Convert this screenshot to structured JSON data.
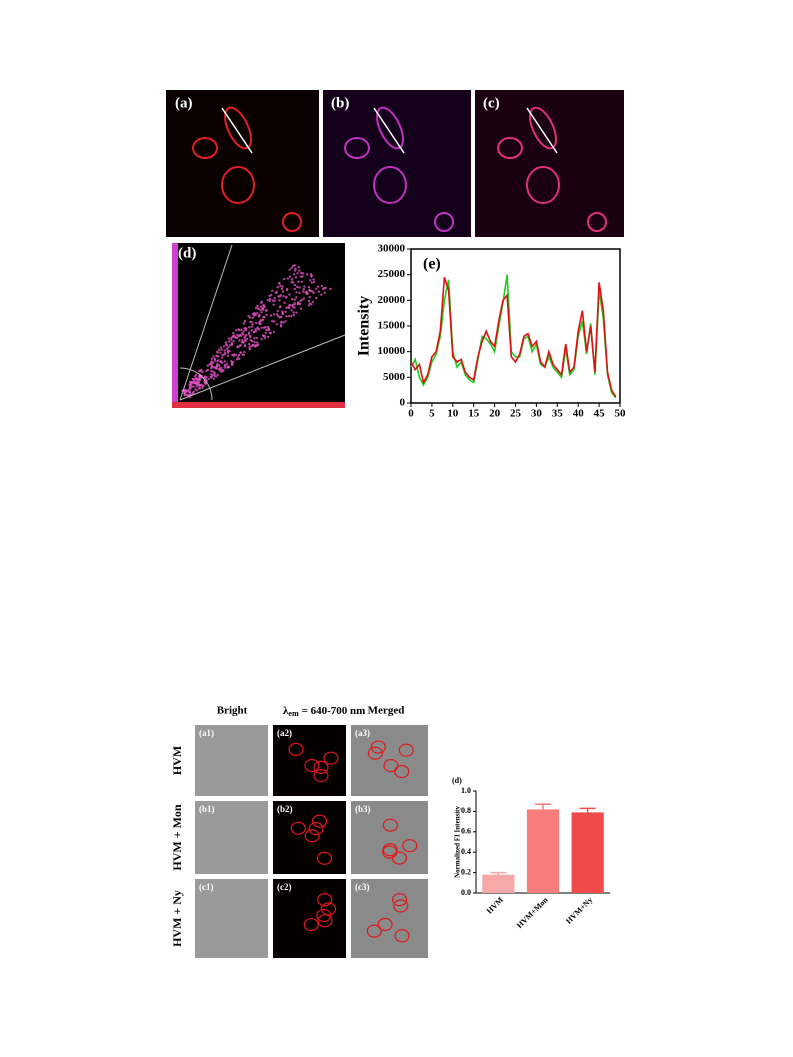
{
  "figure1": {
    "panel_labels": [
      "(a)",
      "(b)",
      "(c)",
      "(d)"
    ]
  },
  "chart_data": [
    {
      "type": "line",
      "annotation": "(e)",
      "y_label": "Intensity",
      "x": [
        0,
        1,
        2,
        3,
        4,
        5,
        6,
        7,
        8,
        9,
        10,
        11,
        12,
        13,
        14,
        15,
        16,
        17,
        18,
        19,
        20,
        21,
        22,
        23,
        24,
        25,
        26,
        27,
        28,
        29,
        30,
        31,
        32,
        33,
        34,
        35,
        36,
        37,
        38,
        39,
        40,
        41,
        42,
        43,
        44,
        45,
        46,
        47,
        48,
        49
      ],
      "series": [
        {
          "color": "#22cc22",
          "values": [
            7000,
            8500,
            5000,
            3500,
            5000,
            8000,
            9500,
            13000,
            20000,
            24000,
            10000,
            7000,
            8000,
            5500,
            4500,
            4000,
            8500,
            13000,
            12500,
            11500,
            10000,
            15000,
            19500,
            25000,
            10000,
            9000,
            9000,
            12500,
            13000,
            10000,
            11500,
            7500,
            7000,
            9000,
            7000,
            6000,
            5000,
            10500,
            5500,
            6500,
            13000,
            16000,
            9500,
            15500,
            5500,
            22000,
            16500,
            5500,
            2000,
            1000
          ]
        },
        {
          "color": "#dd1111",
          "values": [
            8000,
            6500,
            7500,
            4000,
            5500,
            9000,
            10000,
            14000,
            24500,
            22000,
            9000,
            8000,
            8500,
            6000,
            5000,
            4500,
            9000,
            12000,
            14000,
            12000,
            11000,
            16000,
            20000,
            21000,
            9000,
            8000,
            9500,
            13000,
            13500,
            11000,
            12000,
            8000,
            7000,
            10000,
            7500,
            6500,
            5500,
            11500,
            6000,
            7000,
            14000,
            18000,
            10000,
            15000,
            6000,
            23500,
            18000,
            6000,
            2500,
            1200
          ]
        }
      ],
      "xlim": [
        0,
        50
      ],
      "xticks": [
        0,
        5,
        10,
        15,
        20,
        25,
        30,
        35,
        40,
        45,
        50
      ],
      "ylim": [
        0,
        30000
      ],
      "yticks": [
        0,
        5000,
        10000,
        15000,
        20000,
        25000,
        30000
      ]
    },
    {
      "type": "bar",
      "annotation": "(d)",
      "y_label": "Normalized FI Intensity",
      "categories": [
        "HVM",
        "HVM+Mon",
        "HVM+Ny"
      ],
      "values": [
        0.18,
        0.82,
        0.79
      ],
      "errors": [
        0.02,
        0.05,
        0.04
      ],
      "colors": [
        "#f7a8a8",
        "#f77c7c",
        "#f04a4a"
      ],
      "ylim": [
        0,
        1
      ],
      "yticks": [
        {
          "value": 0,
          "label": "0.0"
        },
        0.2,
        0.4,
        0.6,
        0.8,
        {
          "value": 1,
          "label": "1.0"
        }
      ]
    }
  ],
  "figure2": {
    "column_headers": {
      "bright": "Bright",
      "symbol": "λ",
      "subscript": "em",
      "emission": "= 640-700 nm",
      "merged": "Merged"
    },
    "row_labels": [
      "HVM",
      "HVM + Mon",
      "HVM + Ny"
    ],
    "panel_labels": [
      [
        "(a1)",
        "(a2)",
        "(a3)"
      ],
      [
        "(b1)",
        "(b2)",
        "(b3)"
      ],
      [
        "(c1)",
        "(c2)",
        "(c3)"
      ]
    ]
  }
}
